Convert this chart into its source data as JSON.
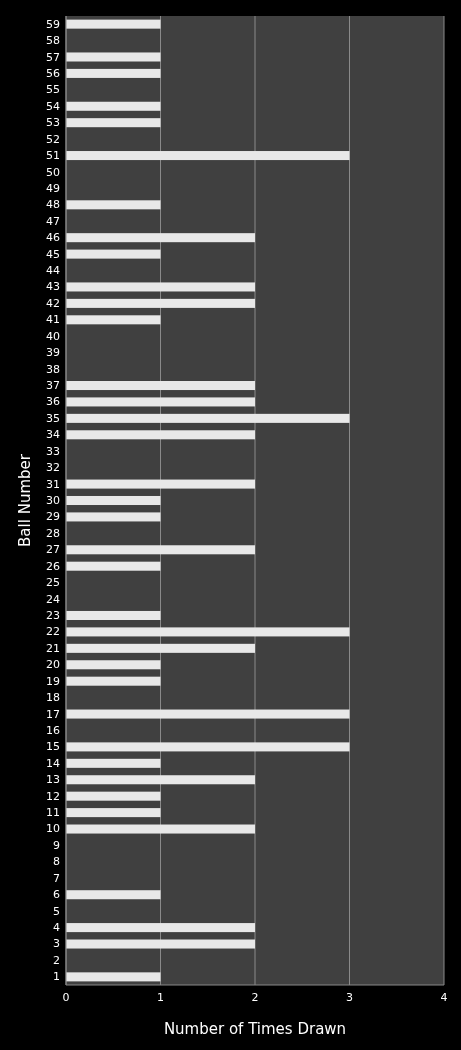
{
  "chart_data": {
    "type": "bar",
    "orientation": "horizontal",
    "xlabel": "Number of Times Drawn",
    "ylabel": "Ball Number",
    "categories": [
      "59",
      "58",
      "57",
      "56",
      "55",
      "54",
      "53",
      "52",
      "51",
      "50",
      "49",
      "48",
      "47",
      "46",
      "45",
      "44",
      "43",
      "42",
      "41",
      "40",
      "39",
      "38",
      "37",
      "36",
      "35",
      "34",
      "33",
      "32",
      "31",
      "30",
      "29",
      "28",
      "27",
      "26",
      "25",
      "24",
      "23",
      "22",
      "21",
      "20",
      "19",
      "18",
      "17",
      "16",
      "15",
      "14",
      "13",
      "12",
      "11",
      "10",
      "9",
      "8",
      "7",
      "6",
      "5",
      "4",
      "3",
      "2",
      "1"
    ],
    "values": [
      1,
      0,
      1,
      1,
      0,
      1,
      1,
      0,
      3,
      0,
      0,
      1,
      0,
      2,
      1,
      0,
      2,
      2,
      1,
      0,
      0,
      0,
      2,
      2,
      3,
      2,
      0,
      0,
      2,
      1,
      1,
      0,
      2,
      1,
      0,
      0,
      1,
      3,
      2,
      1,
      1,
      0,
      3,
      0,
      3,
      1,
      2,
      1,
      1,
      2,
      0,
      0,
      0,
      1,
      0,
      2,
      2,
      0,
      1
    ],
    "color": "#e8e8e8",
    "xlim": [
      0,
      4
    ],
    "xticks": [
      0,
      1,
      2,
      3,
      4
    ],
    "grid": "x"
  }
}
